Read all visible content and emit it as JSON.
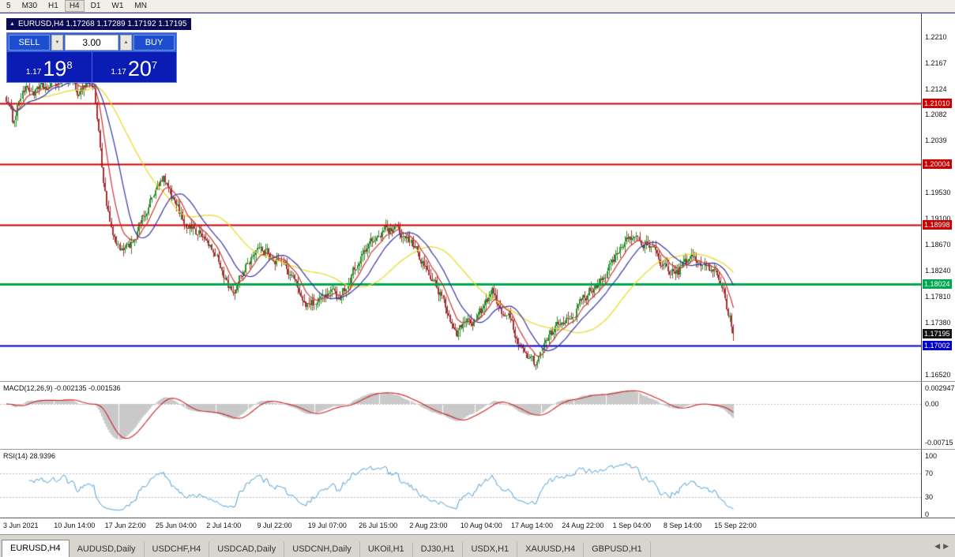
{
  "toolbar": {
    "timeframes": [
      "5",
      "M30",
      "H1",
      "H4",
      "D1",
      "W1",
      "MN"
    ],
    "active": "H4"
  },
  "chart_header": {
    "icon": "▲",
    "title": "EURUSD,H4 1.17268 1.17289 1.17192 1.17195"
  },
  "one_click": {
    "sell_label": "SELL",
    "buy_label": "BUY",
    "volume": "3.00",
    "spin_down_icon": "▼",
    "spin_up_icon": "▲",
    "sell_price": {
      "prefix": "1.17",
      "big": "19",
      "sup": "8"
    },
    "buy_price": {
      "prefix": "1.17",
      "big": "20",
      "sup": "7"
    }
  },
  "price_axis": {
    "labels": [
      {
        "text": "1.2210",
        "price": 1.221
      },
      {
        "text": "1.2167",
        "price": 1.2167
      },
      {
        "text": "1.2124",
        "price": 1.2124
      },
      {
        "text": "1.2082",
        "price": 1.2082
      },
      {
        "text": "1.2039",
        "price": 1.2039
      },
      {
        "text": "1.19530",
        "price": 1.1953
      },
      {
        "text": "1.19100",
        "price": 1.191
      },
      {
        "text": "1.18670",
        "price": 1.1867
      },
      {
        "text": "1.18240",
        "price": 1.1824
      },
      {
        "text": "1.17810",
        "price": 1.1781
      },
      {
        "text": "1.17380",
        "price": 1.1738
      },
      {
        "text": "1.16520",
        "price": 1.1652
      }
    ],
    "badges": [
      {
        "text": "1.21010",
        "price": 1.2101,
        "bg": "#cc0000",
        "fg": "#ffffff"
      },
      {
        "text": "1.20004",
        "price": 1.20004,
        "bg": "#cc0000",
        "fg": "#ffffff"
      },
      {
        "text": "1.18998",
        "price": 1.18998,
        "bg": "#cc0000",
        "fg": "#ffffff"
      },
      {
        "text": "1.18024",
        "price": 1.18024,
        "bg": "#00a850",
        "fg": "#ffffff"
      },
      {
        "text": "1.17195",
        "price": 1.17195,
        "bg": "#141414",
        "fg": "#ffffff"
      },
      {
        "text": "1.17002",
        "price": 1.17002,
        "bg": "#0000cc",
        "fg": "#ffffff"
      }
    ]
  },
  "chart_data": {
    "type": "candlestick",
    "symbol": "EURUSD",
    "timeframe": "H4",
    "count": 450,
    "ylim": [
      1.1642,
      1.225
    ],
    "last_close": 1.17195,
    "anchors": [
      [
        0,
        1.211
      ],
      [
        4,
        1.207
      ],
      [
        10,
        1.2125
      ],
      [
        20,
        1.212
      ],
      [
        30,
        1.213
      ],
      [
        36,
        1.215
      ],
      [
        44,
        1.212
      ],
      [
        50,
        1.2135
      ],
      [
        54,
        1.2128
      ],
      [
        57,
        1.205
      ],
      [
        60,
        1.1975
      ],
      [
        64,
        1.19
      ],
      [
        68,
        1.1862
      ],
      [
        73,
        1.1852
      ],
      [
        80,
        1.1885
      ],
      [
        88,
        1.193
      ],
      [
        94,
        1.1965
      ],
      [
        97,
        1.1972
      ],
      [
        103,
        1.194
      ],
      [
        110,
        1.1905
      ],
      [
        118,
        1.189
      ],
      [
        125,
        1.187
      ],
      [
        132,
        1.183
      ],
      [
        138,
        1.1795
      ],
      [
        142,
        1.1792
      ],
      [
        148,
        1.1835
      ],
      [
        154,
        1.1862
      ],
      [
        160,
        1.1855
      ],
      [
        166,
        1.1848
      ],
      [
        172,
        1.1832
      ],
      [
        180,
        1.1795
      ],
      [
        186,
        1.177
      ],
      [
        192,
        1.1772
      ],
      [
        198,
        1.1788
      ],
      [
        204,
        1.178
      ],
      [
        210,
        1.18
      ],
      [
        217,
        1.184
      ],
      [
        226,
        1.187
      ],
      [
        233,
        1.189
      ],
      [
        240,
        1.1888
      ],
      [
        247,
        1.1875
      ],
      [
        253,
        1.186
      ],
      [
        260,
        1.1825
      ],
      [
        268,
        1.1785
      ],
      [
        274,
        1.174
      ],
      [
        278,
        1.1722
      ],
      [
        284,
        1.174
      ],
      [
        290,
        1.1745
      ],
      [
        296,
        1.177
      ],
      [
        300,
        1.1788
      ],
      [
        306,
        1.176
      ],
      [
        311,
        1.1742
      ],
      [
        316,
        1.1712
      ],
      [
        321,
        1.1685
      ],
      [
        326,
        1.167
      ],
      [
        330,
        1.169
      ],
      [
        336,
        1.1715
      ],
      [
        344,
        1.1745
      ],
      [
        352,
        1.1762
      ],
      [
        360,
        1.179
      ],
      [
        368,
        1.1815
      ],
      [
        375,
        1.1838
      ],
      [
        382,
        1.187
      ],
      [
        387,
        1.1882
      ],
      [
        392,
        1.1875
      ],
      [
        397,
        1.1862
      ],
      [
        402,
        1.1845
      ],
      [
        408,
        1.1828
      ],
      [
        414,
        1.182
      ],
      [
        420,
        1.1838
      ],
      [
        426,
        1.1845
      ],
      [
        431,
        1.183
      ],
      [
        436,
        1.1822
      ],
      [
        440,
        1.1812
      ],
      [
        443,
        1.179
      ],
      [
        446,
        1.1758
      ],
      [
        448,
        1.1735
      ],
      [
        449,
        1.17195
      ]
    ],
    "levels": [
      {
        "price": 1.2101,
        "color": "#cc0000",
        "width": 2
      },
      {
        "price": 1.20004,
        "color": "#cc0000",
        "width": 2
      },
      {
        "price": 1.18998,
        "color": "#cc0000",
        "width": 2
      },
      {
        "price": 1.18024,
        "color": "#00a850",
        "width": 3
      },
      {
        "price": 1.17002,
        "color": "#0000bb",
        "width": 2
      }
    ],
    "moving_averages": [
      {
        "period": 50,
        "method": "sma",
        "color": "#e8d51f"
      },
      {
        "period": 21,
        "method": "sma",
        "color": "#3333aa"
      },
      {
        "period": 10,
        "method": "ema",
        "color": "#cc3333"
      }
    ],
    "candle_up_color": "#2f8f2f",
    "candle_down_color": "#a03333"
  },
  "macd_panel": {
    "label": "MACD(12,26,9) -0.002135 -0.001536",
    "fast": 12,
    "slow": 26,
    "signal": 9,
    "hist_color": "#c9c9c9",
    "signal_color": "#cc2222",
    "axis_labels": [
      {
        "text": "0.002947",
        "value": 0.002947
      },
      {
        "text": "0.00",
        "value": 0
      },
      {
        "text": "-0.00715",
        "value": -0.00715
      }
    ]
  },
  "rsi_panel": {
    "label": "RSI(14) 28.9396",
    "period": 14,
    "line_color": "#4a9bd5",
    "level_lines": [
      70,
      30
    ],
    "axis_labels": [
      {
        "text": "100",
        "value": 100
      },
      {
        "text": "70",
        "value": 70
      },
      {
        "text": "30",
        "value": 30
      },
      {
        "text": "0",
        "value": 0
      }
    ]
  },
  "time_axis": {
    "labels": [
      "3 Jun 2021",
      "10 Jun 14:00",
      "17 Jun 22:00",
      "25 Jun 04:00",
      "2 Jul 14:00",
      "9 Jul 22:00",
      "19 Jul 07:00",
      "26 Jul 15:00",
      "2 Aug 23:00",
      "10 Aug 04:00",
      "17 Aug 14:00",
      "24 Aug 22:00",
      "1 Sep 04:00",
      "8 Sep 14:00",
      "15 Sep 22:00"
    ]
  },
  "tabs": {
    "items": [
      "EURUSD,H4",
      "AUDUSD,Daily",
      "USDCHF,H4",
      "USDCAD,Daily",
      "USDCNH,Daily",
      "UKOil,H1",
      "DJ30,H1",
      "USDX,H1",
      "XAUUSD,H4",
      "GBPUSD,H1"
    ],
    "active_index": 0
  },
  "nav_arrows": {
    "left": "◀",
    "right": "▶"
  }
}
